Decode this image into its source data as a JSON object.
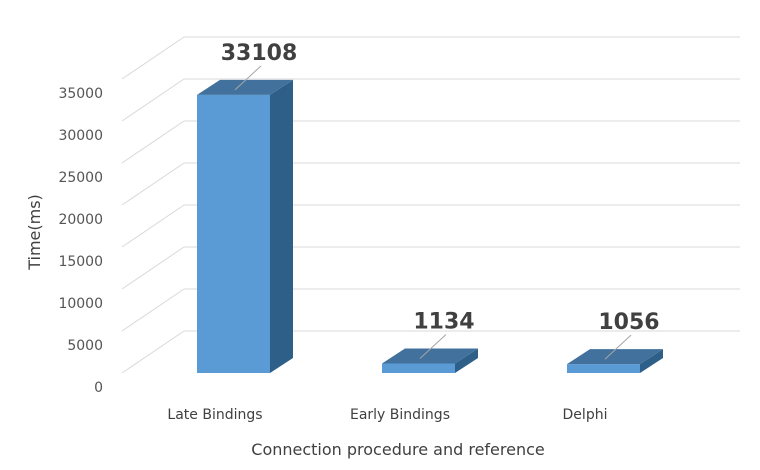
{
  "chart_data": {
    "type": "bar",
    "categories": [
      "Late Bindings",
      "Early Bindings",
      "Delphi"
    ],
    "values": [
      33108,
      1134,
      1056
    ],
    "data_labels": [
      "33108",
      "1134",
      "1056"
    ],
    "xlabel": "Connection procedure and reference",
    "ylabel": "Time(ms)",
    "ylim": [
      0,
      35000
    ],
    "yticks": [
      0,
      5000,
      10000,
      15000,
      20000,
      25000,
      30000,
      35000
    ],
    "ytick_labels": [
      "0",
      "5000",
      "10000",
      "15000",
      "20000",
      "25000",
      "30000",
      "35000"
    ],
    "grid": true,
    "style": "3d-column",
    "colors": {
      "bar_front": "#5b9bd5",
      "bar_top": "#41719c",
      "bar_side": "#2e5f88",
      "grid": "#d9d9d9"
    }
  }
}
